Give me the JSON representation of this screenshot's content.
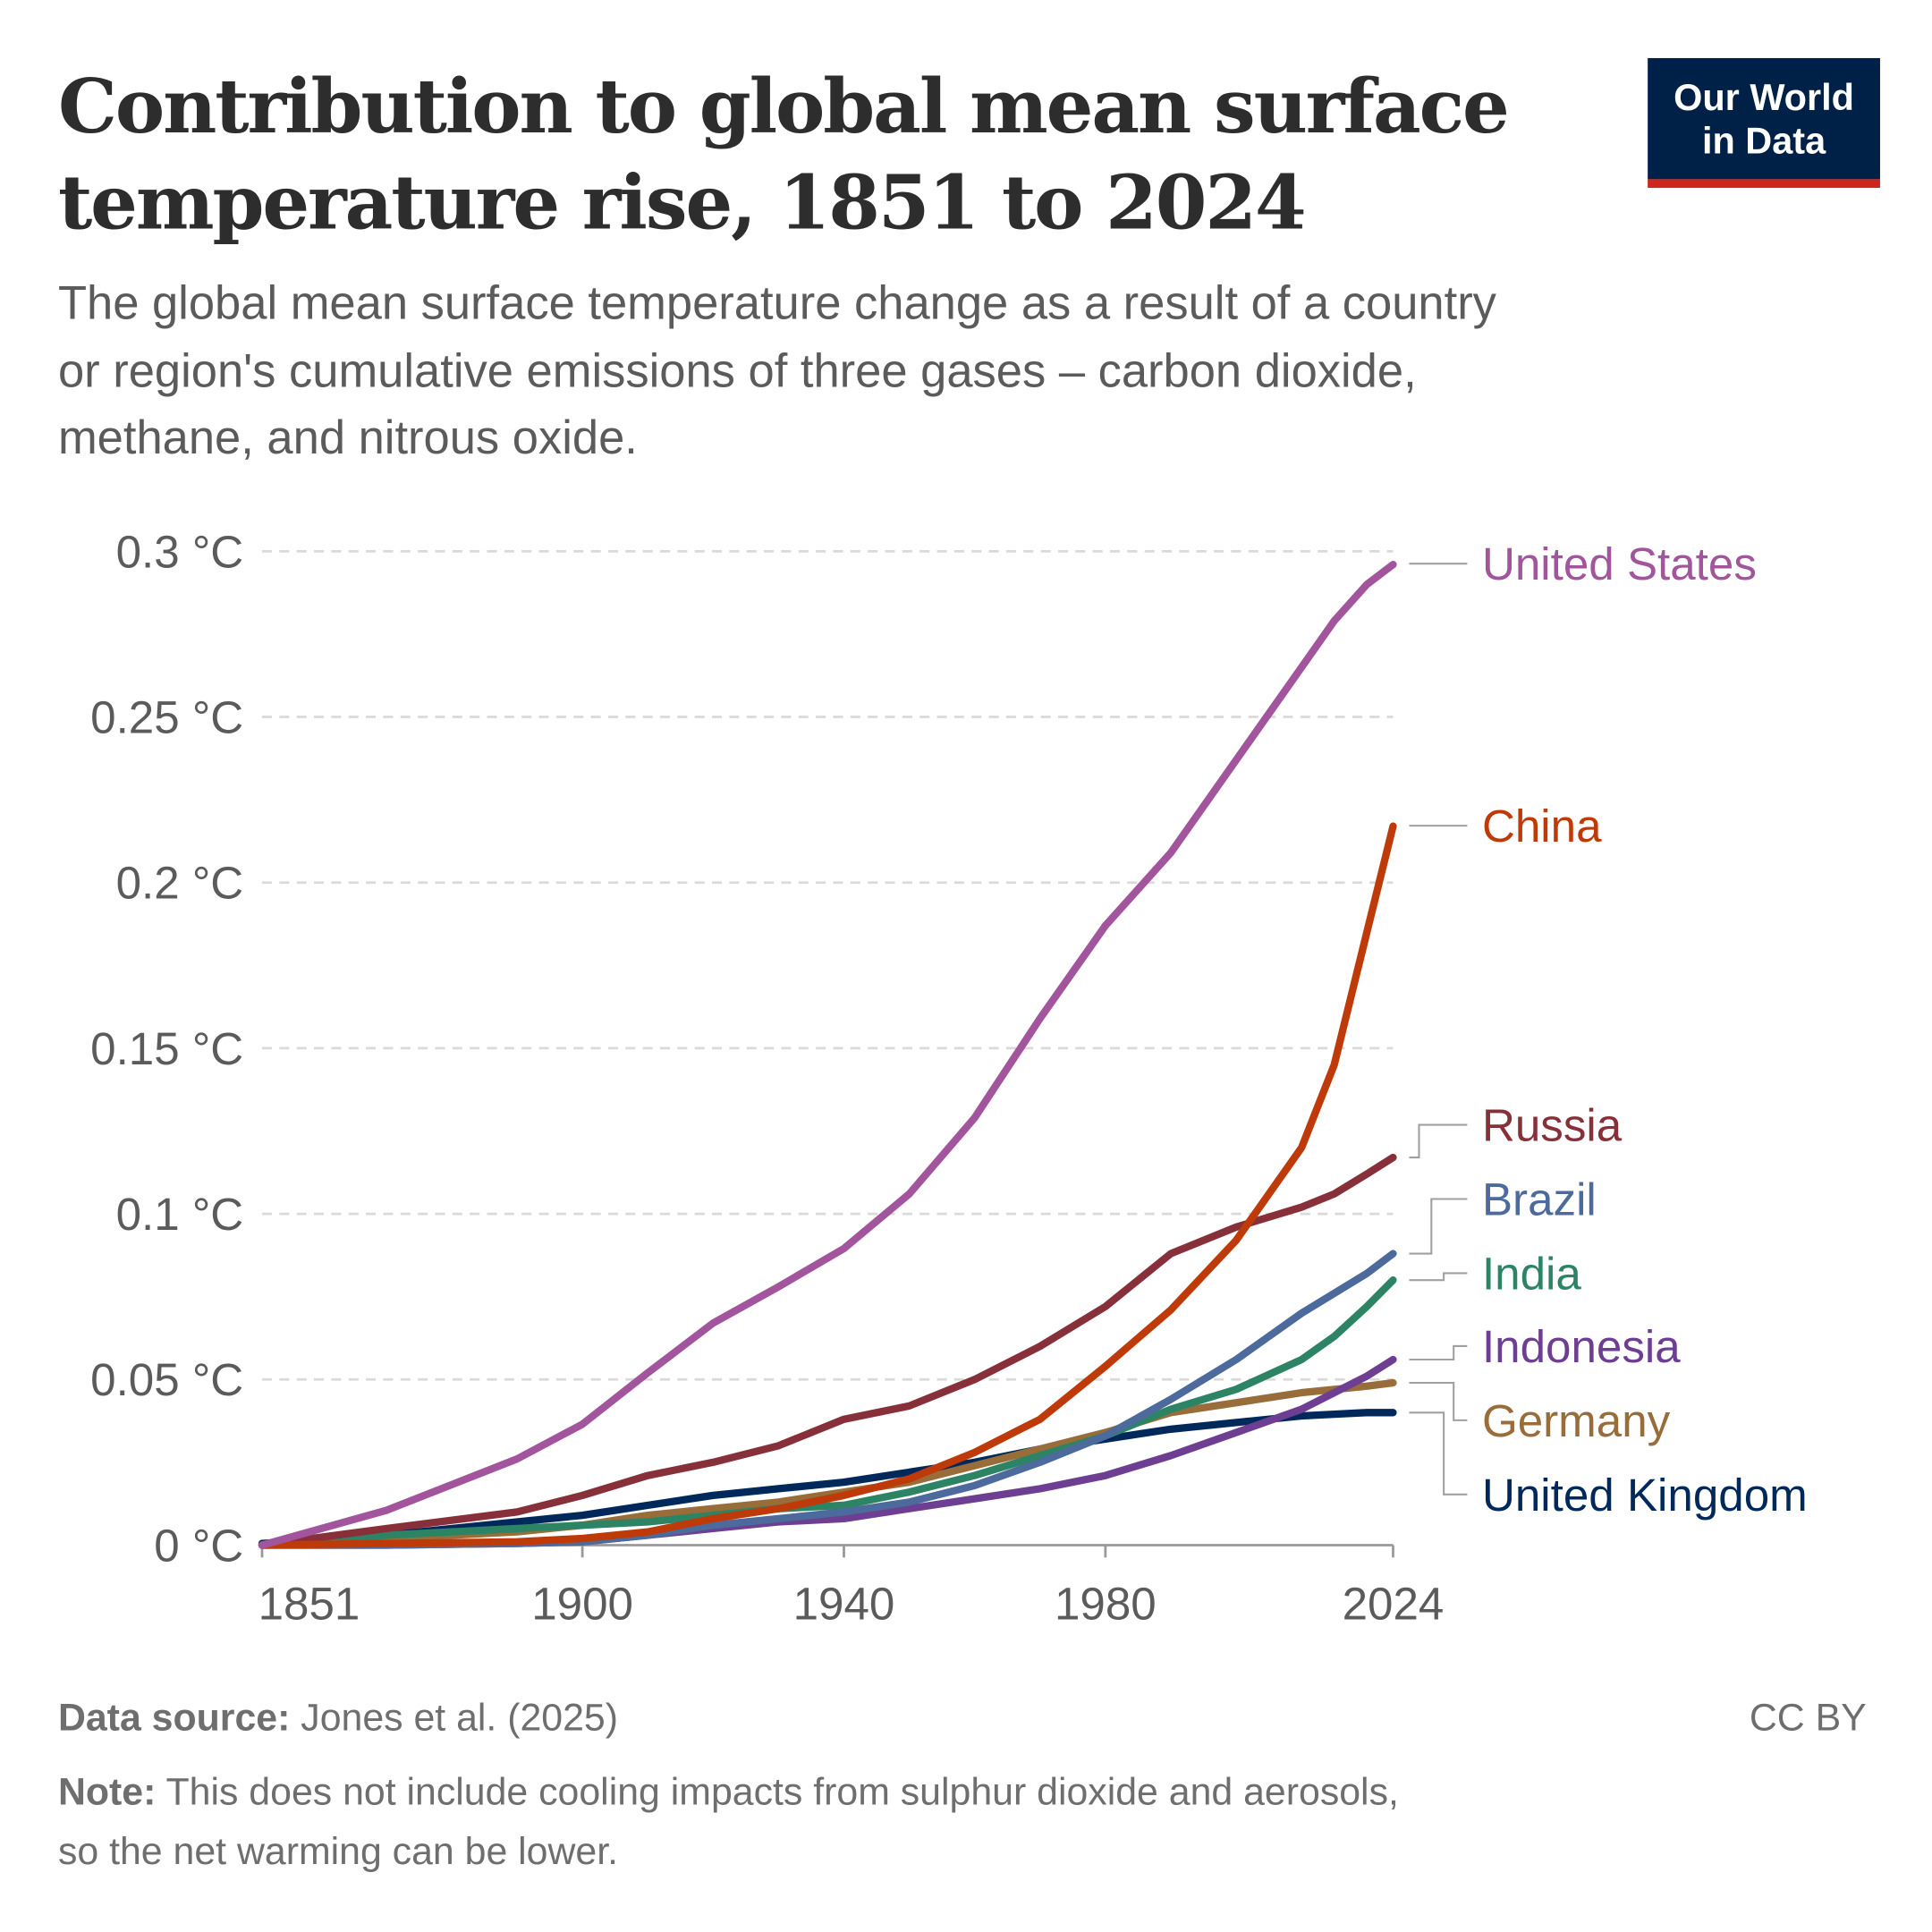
{
  "header": {
    "title_lines": [
      "Contribution to global mean surface",
      "temperature rise, 1851 to 2024"
    ],
    "subtitle_lines": [
      "The global mean surface temperature change as a result of a country",
      "or region's cumulative emissions of three gases – carbon dioxide,",
      "methane, and nitrous oxide."
    ],
    "logo_lines": [
      "Our World",
      "in Data"
    ],
    "logo_bg": "#002147",
    "logo_accent": "#ce261e"
  },
  "chart_data": {
    "type": "line",
    "title": "Contribution to global mean surface temperature rise, 1851 to 2024",
    "xlabel": "",
    "ylabel": "",
    "xlim": [
      1851,
      2024
    ],
    "ylim": [
      0,
      0.3
    ],
    "grid": true,
    "legend": "right (line-end labels)",
    "x_ticks": [
      "1851",
      "1900",
      "1940",
      "1980",
      "2024"
    ],
    "y_ticks": [
      "0 °C",
      "0.05 °C",
      "0.1 °C",
      "0.15 °C",
      "0.2 °C",
      "0.25 °C",
      "0.3 °C"
    ],
    "x": [
      1851,
      1870,
      1890,
      1900,
      1910,
      1920,
      1930,
      1940,
      1950,
      1960,
      1970,
      1980,
      1990,
      2000,
      2010,
      2015,
      2020,
      2024
    ],
    "series": [
      {
        "name": "United States",
        "color": "#a2559c",
        "values": [
          0,
          0.0105,
          0.026,
          0.0365,
          0.052,
          0.067,
          0.078,
          0.0895,
          0.106,
          0.129,
          0.159,
          0.187,
          0.209,
          0.237,
          0.265,
          0.279,
          0.29,
          0.296
        ]
      },
      {
        "name": "China",
        "color": "#be3a09",
        "values": [
          0,
          0.0005,
          0.001,
          0.002,
          0.004,
          0.008,
          0.011,
          0.015,
          0.02,
          0.028,
          0.038,
          0.054,
          0.071,
          0.092,
          0.12,
          0.145,
          0.185,
          0.217
        ]
      },
      {
        "name": "Russia",
        "color": "#883039",
        "values": [
          0,
          0.005,
          0.01,
          0.015,
          0.021,
          0.025,
          0.03,
          0.038,
          0.042,
          0.05,
          0.06,
          0.072,
          0.088,
          0.096,
          0.102,
          0.106,
          0.112,
          0.117
        ]
      },
      {
        "name": "Brazil",
        "color": "#4c6a9c",
        "values": [
          0,
          0,
          0.0005,
          0.001,
          0.003,
          0.006,
          0.008,
          0.01,
          0.013,
          0.018,
          0.025,
          0.033,
          0.044,
          0.056,
          0.07,
          0.076,
          0.082,
          0.088
        ]
      },
      {
        "name": "India",
        "color": "#2c8465",
        "values": [
          0,
          0.003,
          0.005,
          0.006,
          0.007,
          0.009,
          0.011,
          0.012,
          0.016,
          0.021,
          0.027,
          0.033,
          0.041,
          0.047,
          0.056,
          0.063,
          0.072,
          0.08
        ]
      },
      {
        "name": "Indonesia",
        "color": "#6d3e91",
        "values": [
          0,
          0,
          0.0005,
          0.001,
          0.003,
          0.005,
          0.007,
          0.008,
          0.011,
          0.014,
          0.017,
          0.021,
          0.027,
          0.034,
          0.041,
          0.046,
          0.051,
          0.056
        ]
      },
      {
        "name": "Germany",
        "color": "#996d39",
        "values": [
          0,
          0.002,
          0.004,
          0.006,
          0.009,
          0.011,
          0.013,
          0.016,
          0.019,
          0.024,
          0.029,
          0.034,
          0.04,
          0.043,
          0.046,
          0.047,
          0.048,
          0.049
        ]
      },
      {
        "name": "United Kingdom",
        "color": "#00295b",
        "values": [
          0.0005,
          0.003,
          0.007,
          0.009,
          0.012,
          0.015,
          0.017,
          0.019,
          0.022,
          0.025,
          0.029,
          0.032,
          0.035,
          0.037,
          0.039,
          0.0395,
          0.04,
          0.04
        ]
      }
    ]
  },
  "footer": {
    "source_label": "Data source:",
    "source_text": " Jones et al. (2025)",
    "license": "CC BY",
    "note_label": "Note:",
    "note_text_line1": " This does not include cooling impacts from sulphur dioxide and aerosols,",
    "note_text_line2": "so the net warming can be lower."
  }
}
